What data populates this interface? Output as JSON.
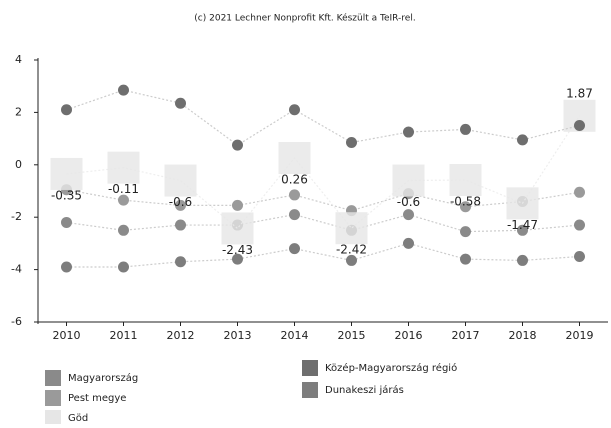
{
  "chart_data": {
    "type": "line",
    "title": "(c) 2021 Lechner Nonprofit Kft. Készült a TeIR-rel.",
    "categories": [
      "2010",
      "2011",
      "2012",
      "2013",
      "2014",
      "2015",
      "2016",
      "2017",
      "2018",
      "2019"
    ],
    "ylim": [
      -6,
      4
    ],
    "yticks": [
      -6,
      -4,
      -2,
      0,
      2,
      4
    ],
    "grid": false,
    "series": [
      {
        "name": "Magyarország",
        "color": "#8a8a8a",
        "values": [
          -2.2,
          -2.5,
          -2.3,
          -2.3,
          -1.9,
          -2.5,
          -1.9,
          -2.55,
          -2.5,
          -2.3
        ]
      },
      {
        "name": "Pest megye",
        "color": "#9a9a9a",
        "values": [
          -0.95,
          -1.35,
          -1.55,
          -1.55,
          -1.15,
          -1.75,
          -1.1,
          -1.6,
          -1.4,
          -1.05
        ]
      },
      {
        "name": "Göd",
        "color": "#e6e6e6",
        "values": [
          -0.35,
          -0.11,
          -0.6,
          -2.43,
          0.26,
          -2.42,
          -0.6,
          -0.58,
          -1.47,
          1.87
        ],
        "labels": true
      },
      {
        "name": "Közép-Magyarország régió",
        "color": "#6e6e6e",
        "values": [
          2.1,
          2.85,
          2.35,
          0.75,
          2.1,
          0.85,
          1.25,
          1.35,
          0.95,
          1.5
        ]
      },
      {
        "name": "Dunakeszi járás",
        "color": "#7d7d7d",
        "values": [
          -3.9,
          -3.9,
          -3.7,
          -3.6,
          -3.2,
          -3.65,
          -3.0,
          -3.6,
          -3.65,
          -3.5
        ]
      }
    ]
  }
}
